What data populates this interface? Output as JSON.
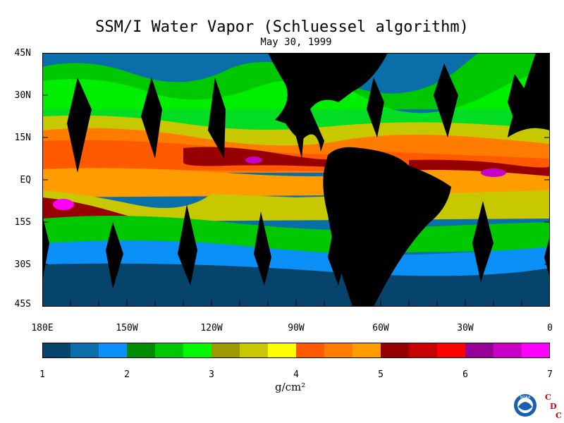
{
  "title": "SSM/I Water Vapor (Schluessel algorithm)",
  "subtitle": "May 30, 1999",
  "y_axis_labels": [
    "45N",
    "30N",
    "15N",
    "EQ",
    "15S",
    "30S",
    "45S"
  ],
  "x_axis_labels": [
    "180E",
    "150W",
    "120W",
    "90W",
    "60W",
    "30W",
    "0"
  ],
  "colorbar": {
    "colors": [
      "#06446b",
      "#0a6fa8",
      "#0a90f6",
      "#008c00",
      "#00c800",
      "#00f800",
      "#9c9a00",
      "#c8c800",
      "#ffff00",
      "#ff5a00",
      "#ff7c00",
      "#ff9c00",
      "#960000",
      "#c80000",
      "#ff0000",
      "#960096",
      "#c800c8",
      "#ff00ff"
    ],
    "tick_labels": [
      "1",
      "2",
      "3",
      "4",
      "5",
      "6",
      "7"
    ],
    "units_label": "g/cm²",
    "range": [
      1,
      7
    ]
  },
  "legend_colors": {
    "land": "#000000",
    "missing_swath": "#000000"
  },
  "logo": {
    "noaa_text": "NOAA",
    "cdc_letters": [
      "C",
      "D",
      "C"
    ],
    "cdc_color": "#d40000"
  }
}
